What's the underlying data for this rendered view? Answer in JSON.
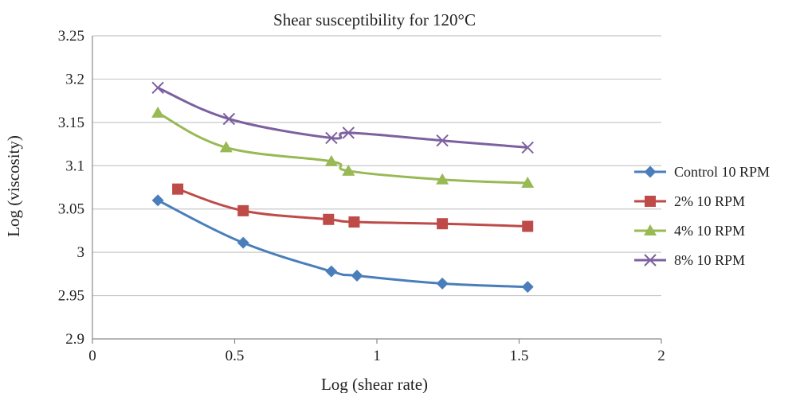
{
  "chart_data": {
    "type": "line",
    "title": "Shear susceptibility for 120°C",
    "xlabel": "Log (shear rate)",
    "ylabel": "Log (viscosity)",
    "xlim": [
      0,
      2
    ],
    "ylim": [
      2.9,
      3.25
    ],
    "x_ticks": [
      0,
      0.5,
      1,
      1.5,
      2
    ],
    "x_tick_labels": [
      "0",
      "0.5",
      "1",
      "1.5",
      "2"
    ],
    "y_ticks": [
      2.9,
      2.95,
      3.0,
      3.05,
      3.1,
      3.15,
      3.2,
      3.25
    ],
    "y_tick_labels": [
      "2.9",
      "2.95",
      "3",
      "3.05",
      "3.1",
      "3.15",
      "3.2",
      "3.25"
    ],
    "grid": "horizontal",
    "legend_position": "right",
    "series": [
      {
        "name": "Control 10 RPM",
        "color": "#4a7ebb",
        "marker": "diamond",
        "x": [
          0.23,
          0.53,
          0.84,
          0.93,
          1.23,
          1.53
        ],
        "y": [
          3.06,
          3.011,
          2.978,
          2.973,
          2.964,
          2.96
        ]
      },
      {
        "name": "2% 10 RPM",
        "color": "#be4b48",
        "marker": "square",
        "x": [
          0.3,
          0.53,
          0.83,
          0.92,
          1.23,
          1.53
        ],
        "y": [
          3.073,
          3.048,
          3.038,
          3.035,
          3.033,
          3.03
        ]
      },
      {
        "name": "4% 10 RPM",
        "color": "#98b954",
        "marker": "triangle",
        "x": [
          0.23,
          0.47,
          0.84,
          0.9,
          1.23,
          1.53
        ],
        "y": [
          3.161,
          3.121,
          3.105,
          3.094,
          3.084,
          3.08
        ]
      },
      {
        "name": "8% 10 RPM",
        "color": "#7d60a0",
        "marker": "x",
        "x": [
          0.23,
          0.48,
          0.84,
          0.9,
          1.23,
          1.53
        ],
        "y": [
          3.19,
          3.154,
          3.132,
          3.138,
          3.129,
          3.121
        ]
      }
    ]
  }
}
